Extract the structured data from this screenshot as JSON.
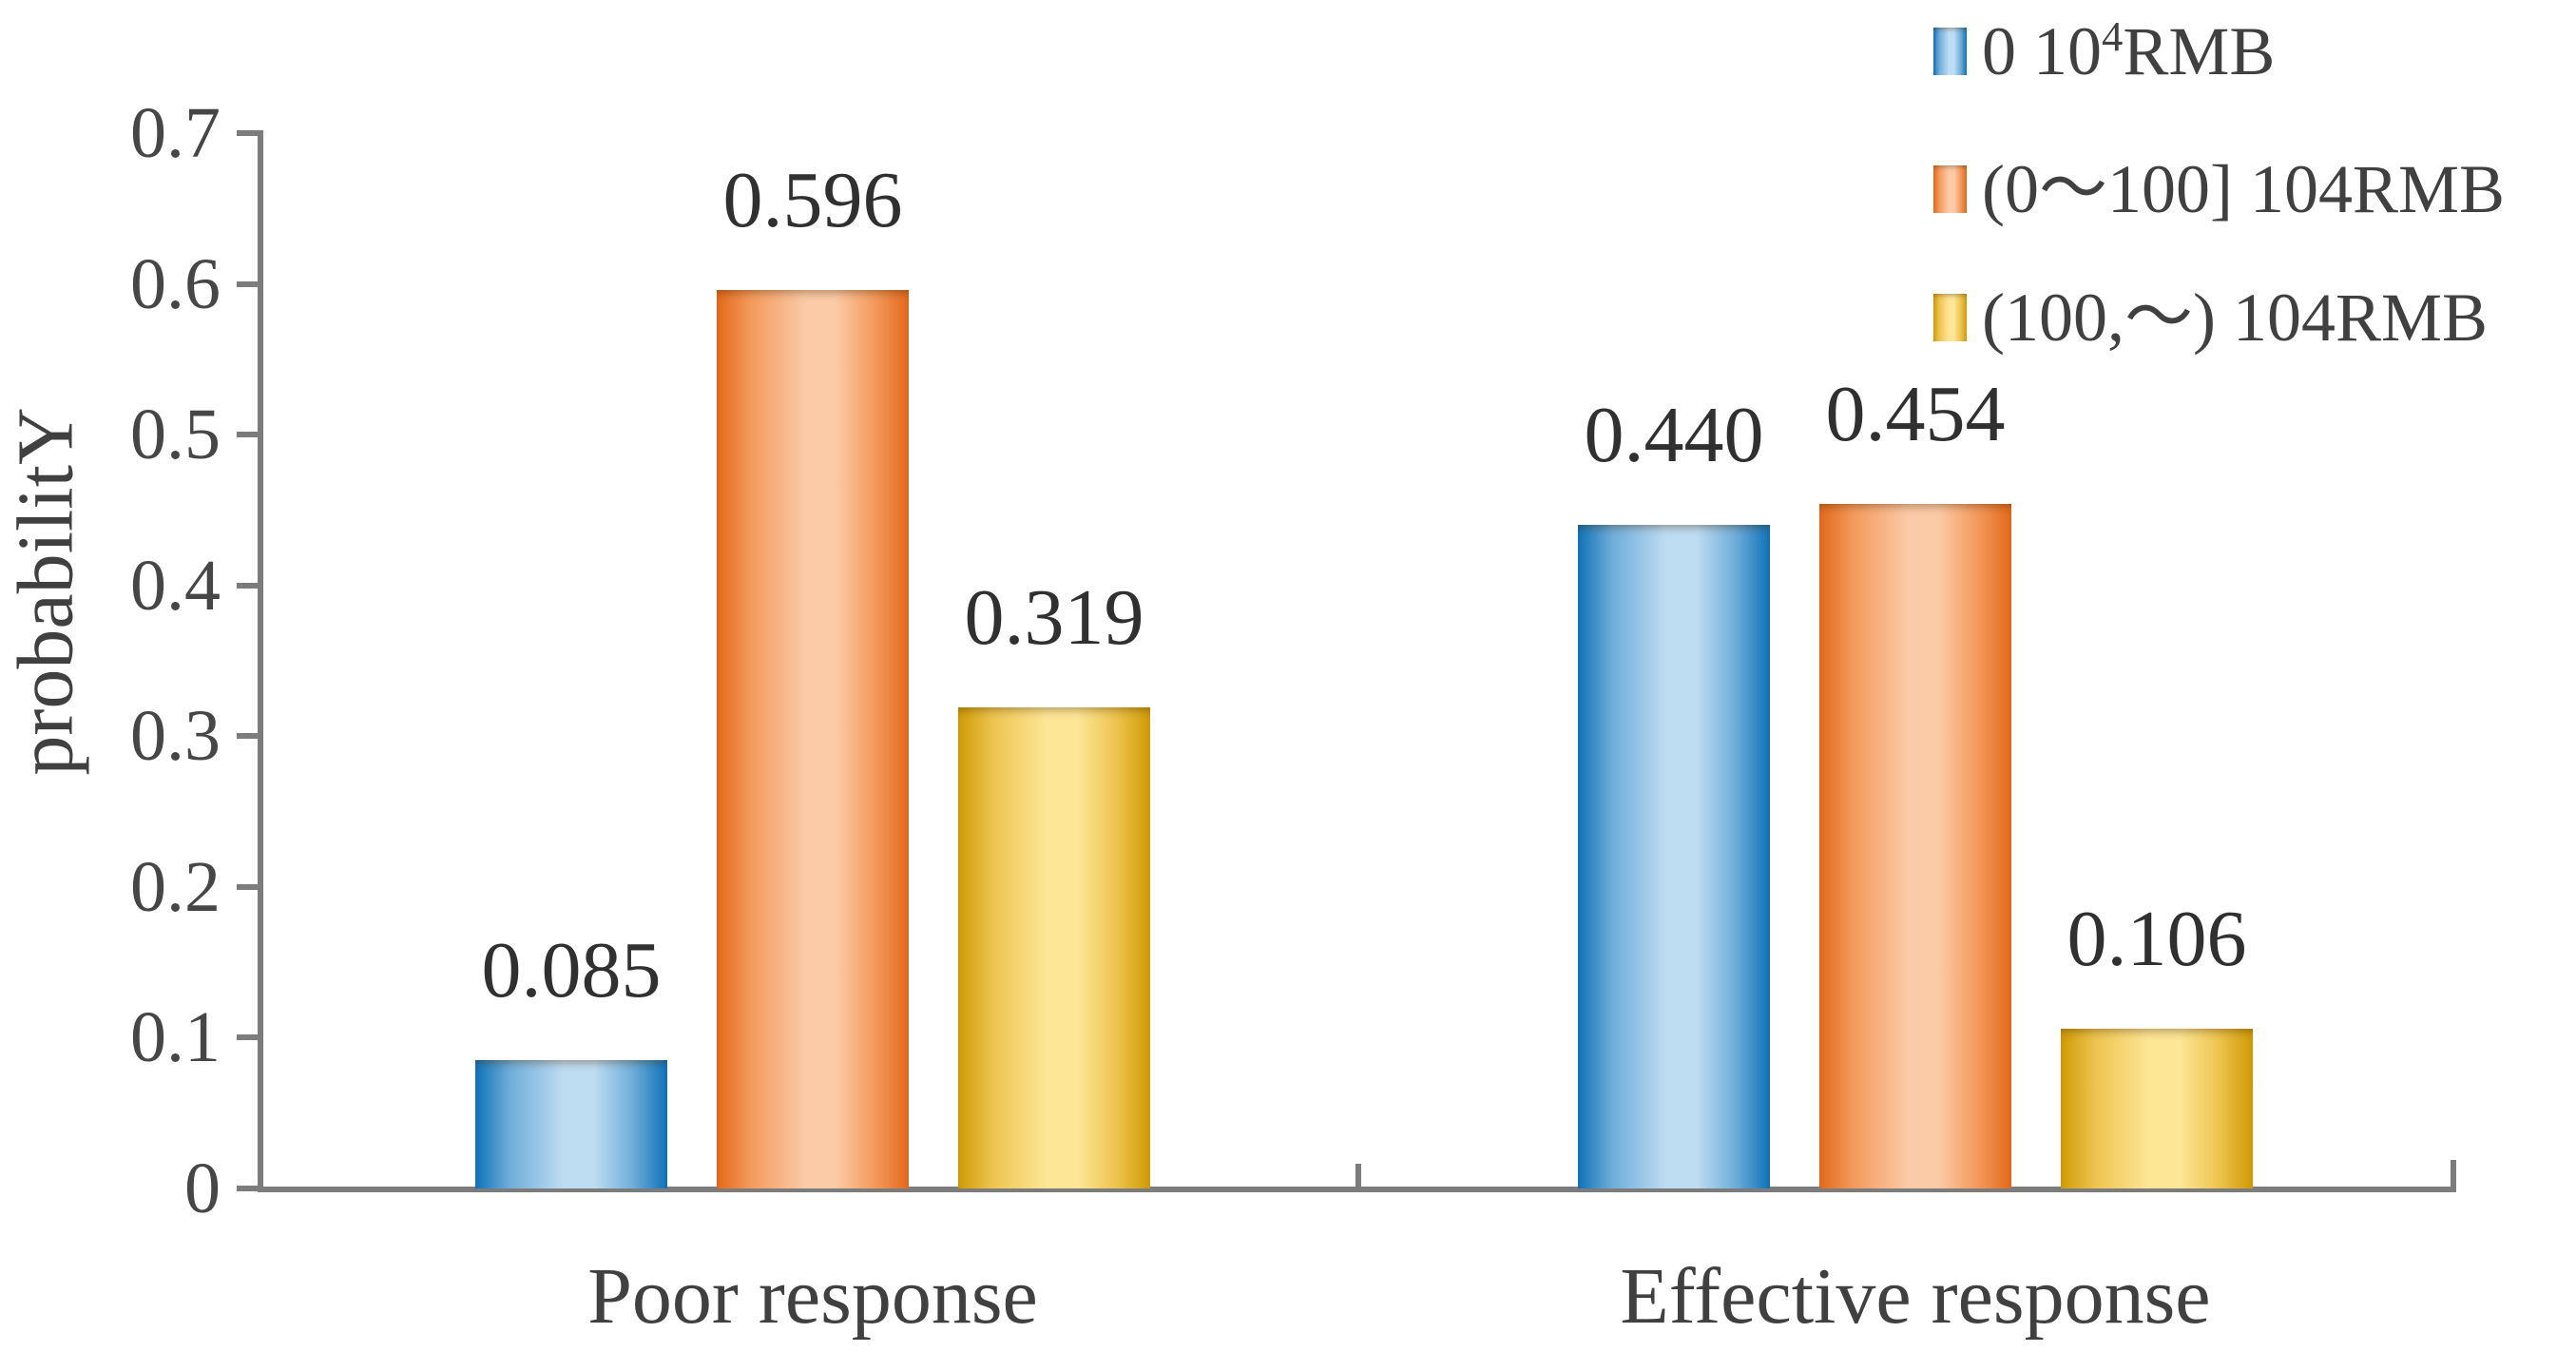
{
  "figure": {
    "background": "#ffffff",
    "axis_color": "#7c7c7c",
    "text_color": "#404040",
    "data_label_color": "#303030"
  },
  "axes": {
    "y_title": "probabilitY",
    "y_tick_labels": [
      "0",
      "0.1",
      "0.2",
      "0.3",
      "0.4",
      "0.5",
      "0.6",
      "0.7"
    ],
    "x_category_labels": [
      "Poor response",
      "Effective response"
    ]
  },
  "legend": {
    "position": "top-right",
    "items": [
      {
        "text": "0 10⁴RMB",
        "parts": [
          {
            "t": "0 10"
          },
          {
            "t": "4",
            "sup": true
          },
          {
            "t": "RMB"
          }
        ]
      },
      {
        "text": "(0～100] 104RMB",
        "parts": [
          {
            "t": "(0～100] 104RMB"
          }
        ]
      },
      {
        "text": "(100,～) 104RMB",
        "parts": [
          {
            "t": "(100,～) 104RMB"
          }
        ]
      }
    ]
  },
  "chart_data": {
    "type": "bar",
    "title": "",
    "xlabel": "",
    "ylabel": "probabilitY",
    "ylim": [
      0,
      0.7
    ],
    "yticks": [
      0,
      0.1,
      0.2,
      0.3,
      0.4,
      0.5,
      0.6,
      0.7
    ],
    "grid": false,
    "legend_position": "top-right",
    "data_labels_shown": true,
    "categories": [
      "Poor response",
      "Effective response"
    ],
    "series": [
      {
        "name": "0 10⁴RMB",
        "values": [
          0.085,
          0.44
        ],
        "value_labels": [
          "0.085",
          "0.440"
        ],
        "color_edge": "#0f72b8",
        "color_mid": "#6fadda",
        "color_light": "#bedcf2"
      },
      {
        "name": "(0～100] 104RMB",
        "values": [
          0.596,
          0.454
        ],
        "value_labels": [
          "0.596",
          "0.454"
        ],
        "color_edge": "#e2691b",
        "color_mid": "#f49a5d",
        "color_light": "#fbcaa6"
      },
      {
        "name": "(100,～) 104RMB",
        "values": [
          0.319,
          0.106
        ],
        "value_labels": [
          "0.319",
          "0.106"
        ],
        "color_edge": "#d09a05",
        "color_mid": "#edc44f",
        "color_light": "#fde696"
      }
    ]
  }
}
